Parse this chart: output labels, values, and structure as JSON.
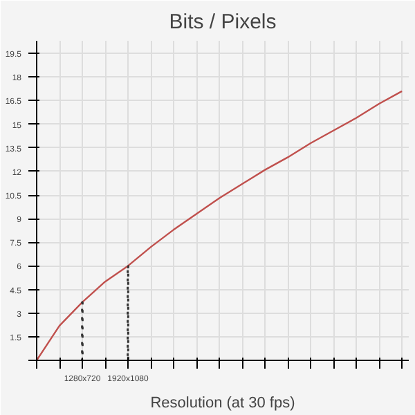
{
  "chart_data": {
    "type": "line",
    "title": "Bits / Pixels",
    "xlabel": "Resolution (at 30 fps)",
    "categories": [
      null,
      null,
      "1280x720",
      null,
      "1920x1080",
      null,
      null,
      null,
      null,
      null,
      null,
      null,
      null,
      null,
      null,
      null,
      null
    ],
    "ylim": [
      0,
      20.3
    ],
    "yticks": [
      {
        "value": 0,
        "label": null
      },
      1.5,
      3,
      4.5,
      6,
      7.5,
      9,
      10.5,
      12,
      13.5,
      15,
      16.5,
      18,
      19.5
    ],
    "grid": true,
    "marker": "none",
    "series": [
      {
        "color": "#c0504d",
        "line_style": "solid",
        "values": [
          0,
          2.2,
          3.7,
          5.0,
          6.0,
          7.2,
          8.3,
          9.3,
          10.3,
          11.2,
          12.1,
          12.9,
          13.8,
          14.6,
          15.4,
          16.3,
          17.1
        ]
      },
      {
        "type": "bar",
        "color": "#333333",
        "line_style": "dotted",
        "values": [
          null,
          null,
          3.7,
          null,
          6.0,
          null,
          null,
          null,
          null,
          null,
          null,
          null,
          null,
          null,
          null,
          null,
          null
        ]
      }
    ]
  }
}
